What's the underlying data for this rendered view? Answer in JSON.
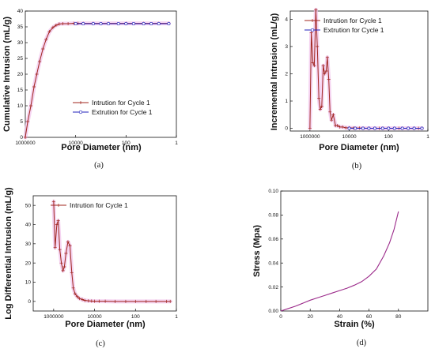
{
  "chart_data": [
    {
      "panel_label": "(a)",
      "type": "line",
      "xlabel": "Pore Diameter (nm)",
      "ylabel": "Cumulative Intrusion (mL/g)",
      "x_scale": "log-reversed",
      "xlim": [
        1000000,
        1
      ],
      "xticks": [
        1000000,
        10000,
        100,
        1
      ],
      "xtick_labels": [
        "1000000",
        "10000",
        "100",
        "1"
      ],
      "ylim": [
        0,
        40
      ],
      "yticks": [
        0,
        5,
        10,
        15,
        20,
        25,
        30,
        35,
        40
      ],
      "ytick_labels": [
        "0",
        "5",
        "10",
        "15",
        "20",
        "25",
        "30",
        "35",
        "40"
      ],
      "legend_position": "lower-right",
      "series": [
        {
          "name": "Intrution for Cycle 1",
          "color": "#a0251e",
          "marker": "plus",
          "x": [
            1000000,
            800000,
            600000,
            450000,
            350000,
            270000,
            200000,
            150000,
            110000,
            80000,
            60000,
            45000,
            32000,
            20000,
            12000,
            8000,
            5000,
            2000,
            500,
            100,
            20,
            5,
            2
          ],
          "y": [
            0,
            5,
            10,
            16,
            20,
            24,
            28,
            31,
            33.5,
            34.8,
            35.5,
            35.9,
            36.0,
            36.0,
            36.1,
            36.1,
            36.1,
            36.1,
            36.1,
            36.1,
            36.1,
            36.1,
            36.1
          ]
        },
        {
          "name": "Extrution for Cycle 1",
          "color": "#2222bb",
          "marker": "circle",
          "x": [
            10000,
            5000,
            2000,
            1000,
            500,
            200,
            100,
            50,
            20,
            10,
            5,
            2
          ],
          "y": [
            36.0,
            36.0,
            36.0,
            36.0,
            36.0,
            36.0,
            36.0,
            36.0,
            36.0,
            36.0,
            36.0,
            36.0
          ]
        }
      ]
    },
    {
      "panel_label": "(b)",
      "type": "line",
      "xlabel": "Pore Diameter (nm)",
      "ylabel": "Incremental Intrusion (mL/g)",
      "x_scale": "log-reversed",
      "xlim": [
        10000000,
        1
      ],
      "xticks": [
        1000000,
        10000,
        100,
        1
      ],
      "xtick_labels": [
        "1000000",
        "10000",
        "100",
        "1"
      ],
      "ylim": [
        -0.1,
        4.3
      ],
      "yticks": [
        0,
        1,
        2,
        3,
        4
      ],
      "ytick_labels": [
        "0",
        "1",
        "2",
        "3",
        "4"
      ],
      "legend_position": "top-right",
      "series": [
        {
          "name": "Intrution for Cycle 1",
          "color": "#a0251e",
          "marker": "plus",
          "x": [
            1000000,
            850000,
            700000,
            600000,
            500000,
            420000,
            350000,
            300000,
            250000,
            210000,
            180000,
            150000,
            130000,
            110000,
            95000,
            80000,
            65000,
            50000,
            40000,
            30000,
            22000,
            15000,
            10000,
            6000,
            3000,
            1000,
            300,
            100,
            30,
            10,
            3,
            2
          ],
          "y": [
            0,
            3.5,
            2.4,
            2.3,
            4.35,
            3.0,
            1.1,
            0.7,
            0.8,
            2.3,
            2.0,
            2.1,
            2.6,
            1.8,
            0.6,
            0.3,
            0.5,
            0.1,
            0.1,
            0.05,
            0.05,
            0.02,
            0.02,
            0.01,
            0.01,
            0,
            0,
            0,
            0,
            0,
            0,
            0
          ]
        },
        {
          "name": "Extrution for Cycle 1",
          "color": "#2222bb",
          "marker": "circle",
          "x": [
            10000,
            5000,
            2000,
            1000,
            500,
            200,
            100,
            50,
            20,
            10,
            5,
            2
          ],
          "y": [
            0,
            0,
            0,
            0,
            0,
            0,
            0,
            0,
            0,
            0,
            0,
            0
          ]
        }
      ]
    },
    {
      "panel_label": "(c)",
      "type": "line",
      "xlabel": "Pore Diameter (nm)",
      "ylabel": "Log Differential Intrusion (mL/g)",
      "x_scale": "log-reversed",
      "xlim": [
        10000000,
        1
      ],
      "xticks": [
        1000000,
        10000,
        100,
        1
      ],
      "xtick_labels": [
        "1000000",
        "10000",
        "100",
        "1"
      ],
      "ylim": [
        -5,
        55
      ],
      "yticks": [
        0,
        10,
        20,
        30,
        40,
        50
      ],
      "ytick_labels": [
        "0",
        "10",
        "20",
        "30",
        "40",
        "50"
      ],
      "legend_position": "top-right",
      "series": [
        {
          "name": "Intrution for Cycle 1",
          "color": "#a0251e",
          "marker": "plus",
          "x": [
            1000000,
            850000,
            700000,
            600000,
            500000,
            420000,
            350000,
            300000,
            250000,
            200000,
            160000,
            130000,
            110000,
            90000,
            70000,
            55000,
            40000,
            30000,
            20000,
            14000,
            10000,
            6000,
            3000,
            1000,
            300,
            100,
            30,
            10,
            3,
            2
          ],
          "y": [
            52,
            28,
            40,
            42,
            27,
            20,
            16,
            18,
            25,
            31,
            29,
            15,
            7,
            4,
            2.5,
            1.5,
            1,
            0.5,
            0.3,
            0.2,
            0.1,
            0.1,
            0.1,
            0,
            0,
            0,
            0,
            0,
            0,
            0
          ]
        }
      ]
    },
    {
      "panel_label": "(d)",
      "type": "line",
      "xlabel": "Strain (%)",
      "ylabel": "Stress (Mpa)",
      "xlim": [
        0,
        100
      ],
      "xticks": [
        0,
        20,
        40,
        60,
        80
      ],
      "xtick_labels": [
        "0",
        "20",
        "40",
        "60",
        "80"
      ],
      "ylim": [
        0,
        0.1
      ],
      "yticks": [
        0,
        0.02,
        0.04,
        0.06,
        0.08,
        0.1
      ],
      "ytick_labels": [
        "0.00",
        "0.02",
        "0.04",
        "0.06",
        "0.08",
        "0.10"
      ],
      "series": [
        {
          "color": "#9b2a8a",
          "x": [
            0,
            5,
            10,
            15,
            20,
            25,
            30,
            35,
            40,
            45,
            50,
            55,
            60,
            65,
            70,
            74,
            77,
            80
          ],
          "y": [
            0,
            0.002,
            0.004,
            0.0065,
            0.009,
            0.011,
            0.013,
            0.015,
            0.017,
            0.019,
            0.0215,
            0.0245,
            0.029,
            0.035,
            0.046,
            0.057,
            0.068,
            0.083
          ]
        }
      ]
    }
  ]
}
